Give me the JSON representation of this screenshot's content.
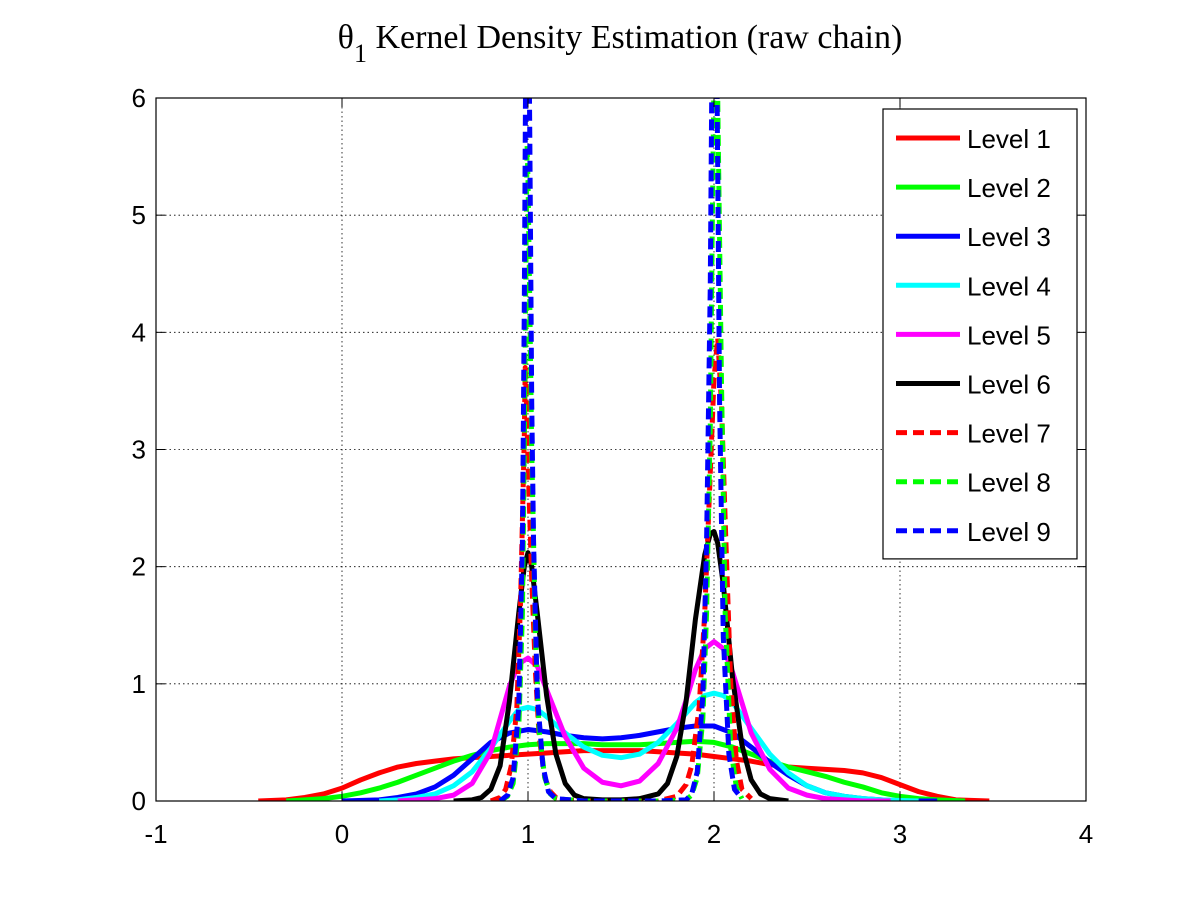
{
  "chart_data": {
    "type": "line",
    "title": {
      "prefix": "θ",
      "subscript": "1",
      "rest": " Kernel Density Estimation (raw chain)"
    },
    "xlabel": "",
    "ylabel": "",
    "xlim": [
      -1,
      4
    ],
    "ylim": [
      0,
      6
    ],
    "xticks": [
      -1,
      0,
      1,
      2,
      3,
      4
    ],
    "yticks": [
      0,
      1,
      2,
      3,
      4,
      5,
      6
    ],
    "xtick_labels": [
      "-1",
      "0",
      "1",
      "2",
      "3",
      "4"
    ],
    "ytick_labels": [
      "0",
      "1",
      "2",
      "3",
      "4",
      "5",
      "6"
    ],
    "grid": true,
    "legend_position": "top-right",
    "series": [
      {
        "name": "Level 1",
        "color": "#ff0000",
        "dash": "solid",
        "range": [
          -0.45,
          3.48
        ],
        "x": [
          -0.45,
          -0.3,
          -0.2,
          -0.1,
          0.0,
          0.1,
          0.2,
          0.3,
          0.4,
          0.5,
          0.6,
          0.7,
          0.8,
          0.9,
          1.0,
          1.1,
          1.2,
          1.3,
          1.4,
          1.5,
          1.6,
          1.7,
          1.8,
          1.9,
          2.0,
          2.1,
          2.2,
          2.3,
          2.4,
          2.5,
          2.6,
          2.7,
          2.8,
          2.9,
          3.0,
          3.1,
          3.2,
          3.3,
          3.48
        ],
        "y": [
          0.0,
          0.01,
          0.03,
          0.06,
          0.11,
          0.18,
          0.24,
          0.29,
          0.32,
          0.34,
          0.36,
          0.37,
          0.38,
          0.39,
          0.4,
          0.41,
          0.42,
          0.43,
          0.43,
          0.43,
          0.43,
          0.42,
          0.41,
          0.4,
          0.38,
          0.36,
          0.34,
          0.31,
          0.29,
          0.28,
          0.27,
          0.26,
          0.24,
          0.2,
          0.14,
          0.08,
          0.04,
          0.01,
          0.0
        ]
      },
      {
        "name": "Level 2",
        "color": "#00ff00",
        "dash": "solid",
        "range": [
          -0.3,
          3.35
        ],
        "peaks": [
          1.0,
          2.0
        ],
        "x": [
          -0.3,
          -0.2,
          -0.1,
          0.0,
          0.1,
          0.2,
          0.3,
          0.4,
          0.5,
          0.6,
          0.7,
          0.8,
          0.9,
          1.0,
          1.1,
          1.2,
          1.3,
          1.4,
          1.5,
          1.6,
          1.7,
          1.8,
          1.9,
          2.0,
          2.1,
          2.2,
          2.3,
          2.4,
          2.5,
          2.6,
          2.7,
          2.8,
          2.9,
          3.0,
          3.1,
          3.2,
          3.35
        ],
        "y": [
          0.0,
          0.01,
          0.02,
          0.04,
          0.07,
          0.11,
          0.16,
          0.22,
          0.28,
          0.34,
          0.39,
          0.43,
          0.46,
          0.48,
          0.49,
          0.49,
          0.49,
          0.48,
          0.48,
          0.48,
          0.49,
          0.5,
          0.51,
          0.5,
          0.46,
          0.4,
          0.34,
          0.29,
          0.25,
          0.21,
          0.16,
          0.12,
          0.07,
          0.04,
          0.02,
          0.01,
          0.0
        ]
      },
      {
        "name": "Level 3",
        "color": "#0000ff",
        "dash": "solid",
        "range": [
          0.0,
          3.2
        ],
        "peaks": [
          1.0,
          2.0
        ],
        "x": [
          0.0,
          0.2,
          0.3,
          0.4,
          0.5,
          0.6,
          0.7,
          0.8,
          0.9,
          1.0,
          1.1,
          1.2,
          1.3,
          1.4,
          1.5,
          1.6,
          1.7,
          1.8,
          1.9,
          2.0,
          2.1,
          2.2,
          2.3,
          2.4,
          2.5,
          2.6,
          2.7,
          2.8,
          2.9,
          3.0,
          3.2
        ],
        "y": [
          0.0,
          0.01,
          0.03,
          0.06,
          0.12,
          0.22,
          0.36,
          0.5,
          0.58,
          0.61,
          0.59,
          0.56,
          0.54,
          0.53,
          0.54,
          0.56,
          0.59,
          0.62,
          0.64,
          0.64,
          0.58,
          0.46,
          0.33,
          0.22,
          0.13,
          0.07,
          0.04,
          0.02,
          0.01,
          0.0,
          0.0
        ]
      },
      {
        "name": "Level 4",
        "color": "#00ffff",
        "dash": "solid",
        "range": [
          0.2,
          3.1
        ],
        "peaks": [
          1.0,
          2.0
        ],
        "x": [
          0.2,
          0.3,
          0.4,
          0.5,
          0.6,
          0.7,
          0.8,
          0.9,
          0.95,
          1.0,
          1.05,
          1.1,
          1.2,
          1.3,
          1.4,
          1.5,
          1.6,
          1.7,
          1.8,
          1.9,
          1.95,
          2.0,
          2.05,
          2.1,
          2.2,
          2.3,
          2.4,
          2.5,
          2.6,
          2.7,
          2.8,
          2.9,
          3.1
        ],
        "y": [
          0.0,
          0.01,
          0.03,
          0.06,
          0.13,
          0.25,
          0.45,
          0.68,
          0.78,
          0.8,
          0.78,
          0.72,
          0.58,
          0.46,
          0.39,
          0.37,
          0.4,
          0.5,
          0.66,
          0.84,
          0.9,
          0.92,
          0.9,
          0.84,
          0.62,
          0.4,
          0.24,
          0.13,
          0.07,
          0.04,
          0.02,
          0.01,
          0.0
        ]
      },
      {
        "name": "Level 5",
        "color": "#ff00ff",
        "dash": "solid",
        "range": [
          0.3,
          2.95
        ],
        "peaks": [
          1.0,
          2.0
        ],
        "x": [
          0.3,
          0.4,
          0.5,
          0.6,
          0.7,
          0.8,
          0.85,
          0.9,
          0.95,
          1.0,
          1.05,
          1.1,
          1.2,
          1.3,
          1.4,
          1.5,
          1.6,
          1.7,
          1.8,
          1.85,
          1.9,
          1.95,
          2.0,
          2.05,
          2.1,
          2.15,
          2.2,
          2.3,
          2.4,
          2.5,
          2.6,
          2.7,
          2.8,
          2.95
        ],
        "y": [
          0.0,
          0.01,
          0.02,
          0.05,
          0.15,
          0.42,
          0.7,
          0.98,
          1.17,
          1.22,
          1.15,
          0.95,
          0.55,
          0.28,
          0.16,
          0.13,
          0.17,
          0.32,
          0.62,
          0.86,
          1.12,
          1.3,
          1.36,
          1.3,
          1.1,
          0.84,
          0.58,
          0.27,
          0.11,
          0.05,
          0.02,
          0.01,
          0.0,
          0.0
        ]
      },
      {
        "name": "Level 6",
        "color": "#000000",
        "dash": "solid",
        "range": [
          0.6,
          2.4
        ],
        "peaks": [
          1.0,
          2.0
        ],
        "x": [
          0.6,
          0.7,
          0.75,
          0.8,
          0.85,
          0.9,
          0.95,
          0.98,
          1.0,
          1.02,
          1.05,
          1.1,
          1.15,
          1.2,
          1.25,
          1.3,
          1.4,
          1.5,
          1.6,
          1.7,
          1.75,
          1.8,
          1.85,
          1.9,
          1.95,
          1.98,
          2.0,
          2.02,
          2.05,
          2.1,
          2.15,
          2.2,
          2.25,
          2.3,
          2.4
        ],
        "y": [
          0.0,
          0.01,
          0.03,
          0.1,
          0.3,
          0.85,
          1.6,
          2.0,
          2.12,
          2.0,
          1.6,
          0.9,
          0.4,
          0.15,
          0.05,
          0.02,
          0.01,
          0.01,
          0.02,
          0.06,
          0.15,
          0.38,
          0.85,
          1.55,
          2.1,
          2.28,
          2.3,
          2.2,
          1.85,
          1.05,
          0.48,
          0.18,
          0.06,
          0.02,
          0.0
        ]
      },
      {
        "name": "Level 7",
        "color": "#ff0000",
        "dash": "dashed",
        "range": [
          0.8,
          2.2
        ],
        "peaks": [
          0.985,
          2.02
        ],
        "x": [
          0.8,
          0.85,
          0.88,
          0.91,
          0.94,
          0.96,
          0.98,
          0.985,
          0.99,
          1.0,
          1.02,
          1.04,
          1.06,
          1.09,
          1.12,
          1.15,
          1.2,
          1.3,
          1.5,
          1.7,
          1.8,
          1.85,
          1.88,
          1.92,
          1.95,
          1.98,
          2.0,
          2.02,
          2.04,
          2.06,
          2.09,
          2.12,
          2.15,
          2.2
        ],
        "y": [
          0.0,
          0.03,
          0.1,
          0.3,
          0.8,
          1.7,
          3.1,
          3.7,
          3.5,
          2.9,
          1.9,
          1.1,
          0.55,
          0.2,
          0.08,
          0.03,
          0.01,
          0.0,
          0.0,
          0.0,
          0.04,
          0.14,
          0.3,
          0.8,
          1.6,
          2.8,
          3.6,
          3.95,
          3.4,
          2.4,
          1.0,
          0.35,
          0.1,
          0.02
        ]
      },
      {
        "name": "Level 8",
        "color": "#00ff00",
        "dash": "dashed",
        "range": [
          0.85,
          2.15
        ],
        "peaks": [
          0.995,
          2.0
        ],
        "x": [
          0.85,
          0.89,
          0.92,
          0.95,
          0.97,
          0.98,
          0.99,
          0.995,
          1.0,
          1.01,
          1.02,
          1.04,
          1.06,
          1.09,
          1.12,
          1.15,
          1.3,
          1.5,
          1.7,
          1.85,
          1.88,
          1.91,
          1.94,
          1.96,
          1.98,
          1.99,
          2.0,
          2.01,
          2.02,
          2.04,
          2.06,
          2.09,
          2.12,
          2.15
        ],
        "y": [
          0.0,
          0.04,
          0.15,
          0.6,
          1.6,
          3.0,
          4.8,
          5.6,
          5.3,
          4.2,
          3.0,
          1.4,
          0.6,
          0.2,
          0.06,
          0.02,
          0.0,
          0.0,
          0.0,
          0.01,
          0.05,
          0.2,
          0.7,
          1.6,
          3.2,
          4.8,
          6.2,
          6.8,
          6.0,
          3.6,
          1.6,
          0.45,
          0.12,
          0.02
        ]
      },
      {
        "name": "Level 9",
        "color": "#0000ff",
        "dash": "dashed",
        "range": [
          0.85,
          2.15
        ],
        "peaks": [
          0.99,
          2.01
        ],
        "x": [
          0.85,
          0.89,
          0.92,
          0.95,
          0.97,
          0.98,
          0.99,
          1.0,
          1.01,
          1.02,
          1.03,
          1.05,
          1.08,
          1.11,
          1.15,
          1.3,
          1.5,
          1.7,
          1.85,
          1.88,
          1.91,
          1.94,
          1.96,
          1.98,
          1.99,
          2.0,
          2.01,
          2.02,
          2.03,
          2.05,
          2.08,
          2.11,
          2.15
        ],
        "y": [
          0.0,
          0.05,
          0.2,
          0.8,
          2.2,
          4.2,
          7.0,
          7.5,
          5.6,
          3.4,
          2.2,
          0.9,
          0.3,
          0.08,
          0.02,
          0.0,
          0.0,
          0.0,
          0.01,
          0.06,
          0.25,
          0.9,
          2.2,
          4.4,
          6.5,
          7.5,
          7.2,
          5.4,
          3.4,
          1.4,
          0.4,
          0.1,
          0.02
        ]
      }
    ]
  }
}
